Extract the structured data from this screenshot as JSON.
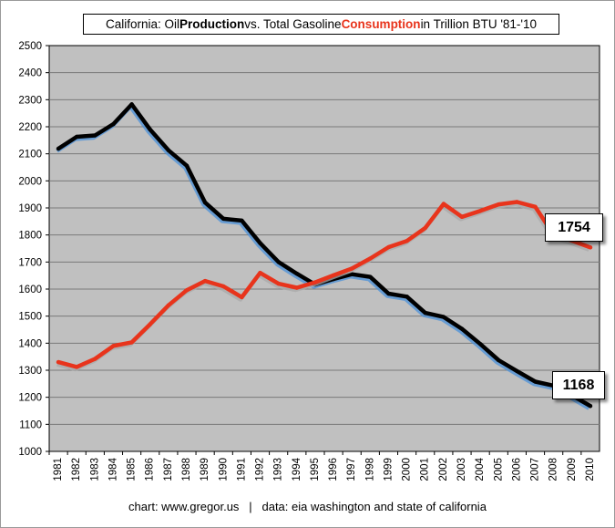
{
  "chart_data": {
    "type": "line",
    "title_parts": [
      {
        "text": "California: Oil ",
        "style": "normal"
      },
      {
        "text": "Production",
        "style": "bold"
      },
      {
        "text": " vs. Total Gasoline ",
        "style": "normal"
      },
      {
        "text": "Consumption",
        "style": "bold-red"
      },
      {
        "text": " in Trillion BTU '81-'10",
        "style": "normal"
      }
    ],
    "categories": [
      "1981",
      "1982",
      "1983",
      "1984",
      "1985",
      "1986",
      "1987",
      "1988",
      "1989",
      "1990",
      "1991",
      "1992",
      "1993",
      "1994",
      "1995",
      "1996",
      "1997",
      "1998",
      "1999",
      "2000",
      "2001",
      "2002",
      "2003",
      "2004",
      "2005",
      "2006",
      "2007",
      "2008",
      "2009",
      "2010"
    ],
    "ylim": [
      1000,
      2500
    ],
    "yticks": [
      "1000",
      "1100",
      "1200",
      "1300",
      "1400",
      "1500",
      "1600",
      "1700",
      "1800",
      "1900",
      "2000",
      "2100",
      "2200",
      "2300",
      "2400",
      "2500"
    ],
    "grid": true,
    "series": [
      {
        "key": "production",
        "color": "#000000",
        "shadow_color": "#4a90d9",
        "values": [
          2119,
          2163,
          2168,
          2210,
          2283,
          2190,
          2113,
          2056,
          1920,
          1860,
          1853,
          1770,
          1700,
          1657,
          1617,
          1637,
          1655,
          1645,
          1583,
          1572,
          1512,
          1497,
          1453,
          1397,
          1337,
          1297,
          1258,
          1243,
          1207,
          1168
        ]
      },
      {
        "key": "consumption",
        "color": "#e8341c",
        "shadow_color": "#aaaaaa",
        "values": [
          1330,
          1312,
          1342,
          1390,
          1403,
          1470,
          1540,
          1596,
          1630,
          1610,
          1570,
          1660,
          1620,
          1605,
          1625,
          1651,
          1676,
          1713,
          1755,
          1778,
          1826,
          1915,
          1867,
          1889,
          1913,
          1922,
          1904,
          1800,
          1779,
          1754
        ]
      }
    ],
    "annotations": [
      {
        "label": "1754",
        "series": "consumption"
      },
      {
        "label": "1168",
        "series": "production"
      }
    ],
    "footer": "chart: www.gregor.us   |   data: eia washington and state of california",
    "plot_bg": "#c0c0c0",
    "grid_color": "#7a7a7a"
  }
}
